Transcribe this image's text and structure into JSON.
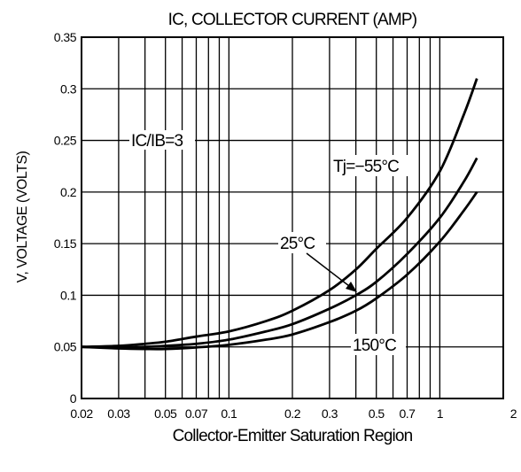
{
  "chart_data": {
    "type": "line",
    "title": "IC, COLLECTOR CURRENT (AMP)",
    "xlabel": "Collector-Emitter Saturation Region",
    "ylabel": "V, VOLTAGE (VOLTS)",
    "xscale": "log",
    "xlim": [
      0.02,
      2
    ],
    "ylim": [
      0,
      0.35
    ],
    "grid": true,
    "x_ticks": [
      0.02,
      0.03,
      0.05,
      0.07,
      0.1,
      0.2,
      0.3,
      0.5,
      0.7,
      1,
      2
    ],
    "x_tick_labels": [
      "0.02",
      "0.03",
      "0.05",
      "0.07",
      "0.1",
      "0.2",
      "0.3",
      "0.5",
      "0.7",
      "1",
      "2"
    ],
    "y_ticks": [
      0,
      0.05,
      0.1,
      0.15,
      0.2,
      0.25,
      0.3,
      0.35
    ],
    "y_tick_labels": [
      "0",
      "0.05",
      "0.1",
      "0.15",
      "0.2",
      "0.25",
      "0.3",
      "0.35"
    ],
    "annotations": [
      "IC/IB=3",
      "Tj=−55°C",
      "25°C",
      "150°C"
    ],
    "series": [
      {
        "name": "Tj=−55°C",
        "x": [
          0.02,
          0.03,
          0.04,
          0.05,
          0.07,
          0.1,
          0.15,
          0.2,
          0.3,
          0.4,
          0.5,
          0.7,
          1.0,
          1.3,
          1.5
        ],
        "y": [
          0.05,
          0.051,
          0.053,
          0.055,
          0.06,
          0.065,
          0.075,
          0.085,
          0.105,
          0.125,
          0.145,
          0.175,
          0.22,
          0.275,
          0.31
        ]
      },
      {
        "name": "25°C",
        "x": [
          0.02,
          0.03,
          0.04,
          0.05,
          0.07,
          0.1,
          0.15,
          0.2,
          0.3,
          0.4,
          0.5,
          0.7,
          1.0,
          1.3,
          1.5
        ],
        "y": [
          0.05,
          0.0495,
          0.05,
          0.051,
          0.053,
          0.057,
          0.065,
          0.072,
          0.087,
          0.1,
          0.113,
          0.14,
          0.175,
          0.21,
          0.233
        ]
      },
      {
        "name": "150°C",
        "x": [
          0.02,
          0.03,
          0.04,
          0.05,
          0.07,
          0.1,
          0.15,
          0.2,
          0.3,
          0.4,
          0.5,
          0.7,
          1.0,
          1.3,
          1.5
        ],
        "y": [
          0.05,
          0.0485,
          0.048,
          0.048,
          0.0495,
          0.052,
          0.057,
          0.062,
          0.074,
          0.085,
          0.097,
          0.12,
          0.152,
          0.182,
          0.2
        ]
      }
    ]
  }
}
